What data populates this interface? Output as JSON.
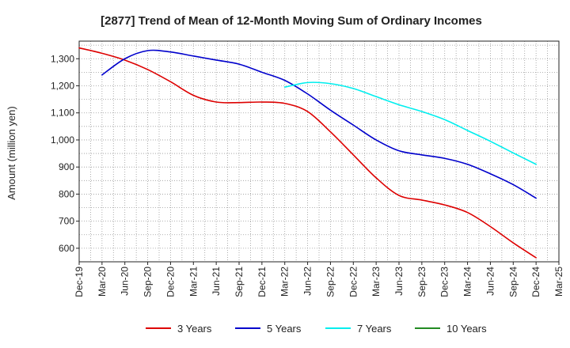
{
  "chart_data": {
    "type": "line",
    "title": "[2877]  Trend of Mean of 12-Month Moving Sum of Ordinary Incomes",
    "xlabel": "",
    "ylabel": "Amount (million yen)",
    "categories": [
      "Dec-19",
      "Mar-20",
      "Jun-20",
      "Sep-20",
      "Dec-20",
      "Mar-21",
      "Jun-21",
      "Sep-21",
      "Dec-21",
      "Mar-22",
      "Jun-22",
      "Sep-22",
      "Dec-22",
      "Mar-23",
      "Jun-23",
      "Sep-23",
      "Dec-23",
      "Mar-24",
      "Jun-24",
      "Sep-24",
      "Dec-24",
      "Mar-25"
    ],
    "yticks": [
      600,
      700,
      800,
      900,
      1000,
      1100,
      1200,
      1300
    ],
    "ylim": [
      550,
      1365
    ],
    "grid": true,
    "legend_position": "bottom",
    "series": [
      {
        "name": "3 Years",
        "color": "#dd0000",
        "values": [
          1340,
          1320,
          1295,
          1260,
          1215,
          1165,
          1140,
          1138,
          1140,
          1135,
          1105,
          1030,
          945,
          860,
          795,
          778,
          760,
          732,
          680,
          620,
          565,
          null
        ]
      },
      {
        "name": "5 Years",
        "color": "#0000cc",
        "values": [
          null,
          1240,
          1300,
          1330,
          1325,
          1310,
          1295,
          1280,
          1250,
          1220,
          1170,
          1110,
          1055,
          1000,
          960,
          945,
          932,
          910,
          875,
          835,
          785,
          null
        ]
      },
      {
        "name": "7 Years",
        "color": "#00eeee",
        "values": [
          null,
          null,
          null,
          null,
          null,
          null,
          null,
          null,
          null,
          1195,
          1212,
          1208,
          1190,
          1160,
          1130,
          1105,
          1075,
          1035,
          995,
          952,
          910,
          null
        ]
      },
      {
        "name": "10 Years",
        "color": "#228b22",
        "values": [
          null,
          null,
          null,
          null,
          null,
          null,
          null,
          null,
          null,
          null,
          null,
          null,
          null,
          null,
          null,
          null,
          null,
          null,
          null,
          null,
          null,
          null
        ]
      }
    ]
  }
}
